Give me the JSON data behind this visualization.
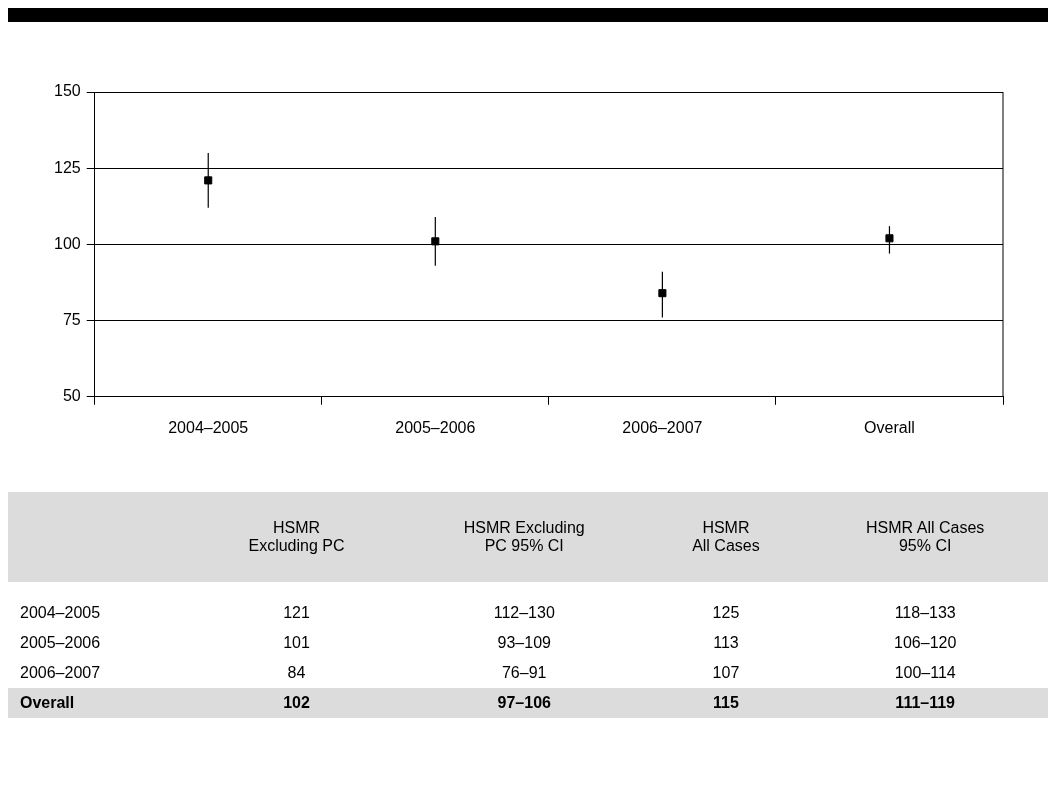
{
  "chart_data": [
    {
      "type": "scatter",
      "categories": [
        "2004–2005",
        "2005–2006",
        "2006–2007",
        "Overall"
      ],
      "values": [
        121,
        101,
        84,
        102
      ],
      "errors": [
        [
          112,
          130
        ],
        [
          93,
          109
        ],
        [
          76,
          91
        ],
        [
          97,
          106
        ]
      ],
      "color": "#000000",
      "marker": "square",
      "ylim": [
        50,
        150
      ],
      "yticks": [
        50,
        75,
        100,
        125,
        150
      ],
      "grid": "y"
    },
    {
      "type": "other",
      "categories": [
        null,
        "HSMR\nExcluding PC",
        "HSMR Excluding\nPC 95% CI",
        "HSMR\nAll Cases",
        "HSMR All Cases\n95% CI"
      ],
      "y_categories": [
        "2004–2005",
        "2005–2006",
        "2006–2007",
        "Overall"
      ],
      "cell_labels": [
        [
          "121",
          "112–130",
          "125",
          "118–133"
        ],
        [
          "101",
          "93–109",
          "113",
          "106–120"
        ],
        [
          "84",
          "76–91",
          "107",
          "100–114"
        ],
        [
          "102",
          "97–106",
          "115",
          "111–119"
        ]
      ]
    }
  ]
}
